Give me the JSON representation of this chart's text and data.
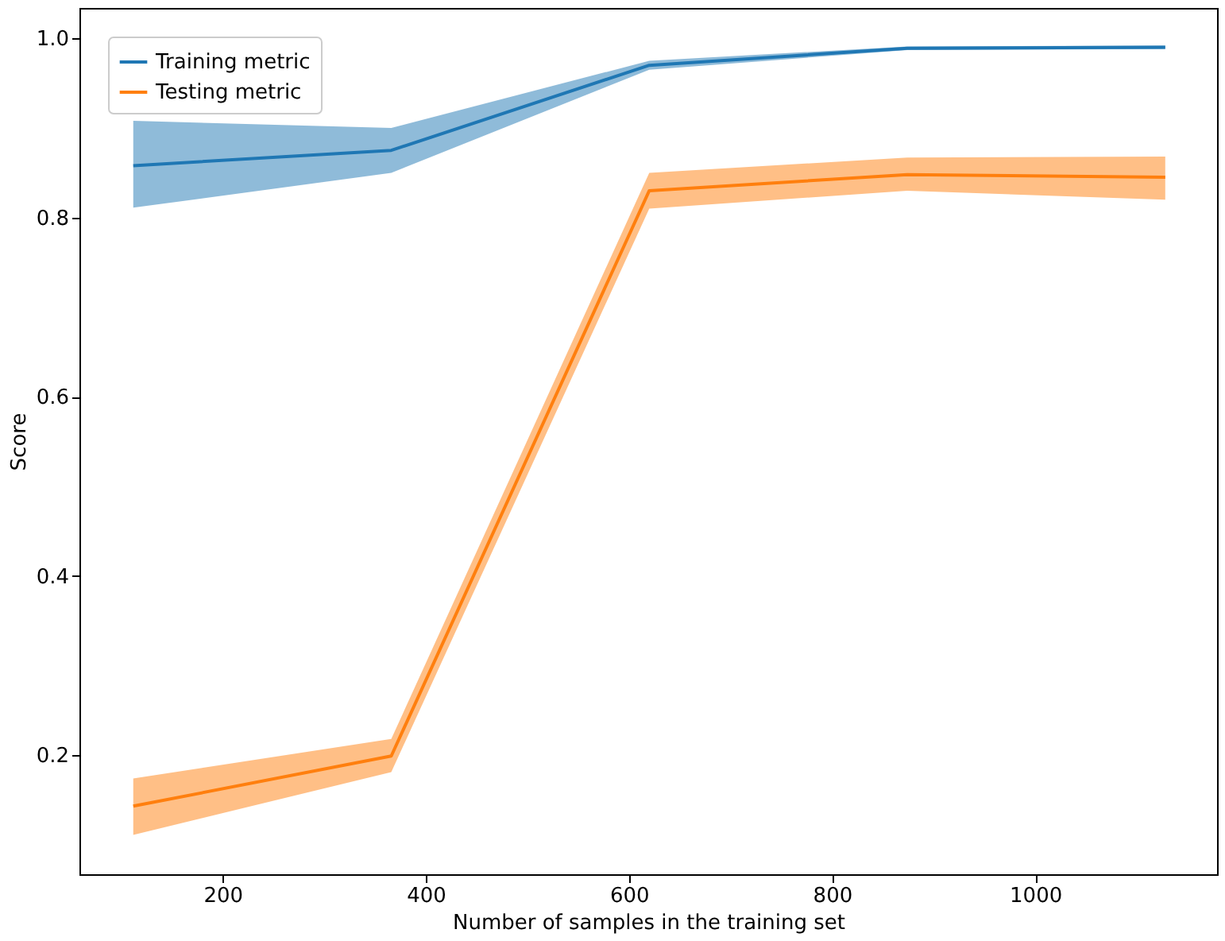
{
  "chart_data": {
    "type": "line",
    "xlabel": "Number of samples in the training set",
    "ylabel": "Score",
    "x": [
      112,
      366,
      620,
      874,
      1128
    ],
    "series": [
      {
        "name": "Training metric",
        "color": "#1f77b4",
        "values": [
          0.858,
          0.875,
          0.97,
          0.989,
          0.99
        ],
        "lower": [
          0.811,
          0.85,
          0.965,
          0.987,
          0.988
        ],
        "upper": [
          0.908,
          0.9,
          0.975,
          0.991,
          0.992
        ]
      },
      {
        "name": "Testing metric",
        "color": "#ff7f0e",
        "values": [
          0.143,
          0.199,
          0.83,
          0.848,
          0.845
        ],
        "lower": [
          0.111,
          0.181,
          0.81,
          0.83,
          0.82
        ],
        "upper": [
          0.174,
          0.218,
          0.85,
          0.867,
          0.868
        ]
      }
    ],
    "xlim": [
      59,
      1179
    ],
    "ylim": [
      0.067,
      1.034
    ],
    "xticks": [
      200,
      400,
      600,
      800,
      1000
    ],
    "yticks": [
      0.2,
      0.4,
      0.6,
      0.8,
      {
        "value": 1.0,
        "label": "1.0"
      }
    ],
    "grid": false,
    "legend": "top left",
    "marker": "none",
    "line_style": "solid"
  }
}
